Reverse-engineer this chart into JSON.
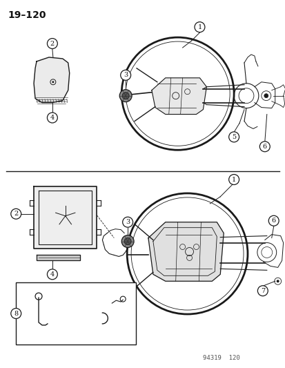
{
  "title": "19–120",
  "bg_color": "#ffffff",
  "line_color": "#1a1a1a",
  "text_color": "#111111",
  "figsize": [
    4.14,
    5.33
  ],
  "dpi": 100,
  "watermark": "94319  120"
}
